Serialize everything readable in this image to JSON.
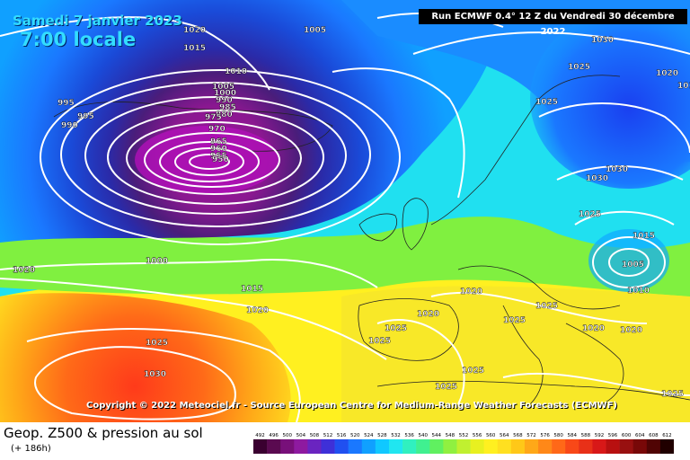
{
  "map": {
    "date": "Samedi 7 janvier 2023",
    "time": "7:00 locale",
    "run_info": "Run ECMWF 0.4° 12 Z du Vendredi 30 décembre 2022",
    "copyright": "Copyright © 2022 Meteociel.fr - Source European Centre for Medium-Range Weather Forecasts (ECMWF)",
    "contour_labels": [
      "1020",
      "1005",
      "1015",
      "1010",
      "1005",
      "1000",
      "990",
      "985",
      "980",
      "975",
      "970",
      "965",
      "960",
      "955",
      "950",
      "995",
      "995",
      "990",
      "1030",
      "1025",
      "1020",
      "1010",
      "1025",
      "1030",
      "1030",
      "1025",
      "1015",
      "1005",
      "1010",
      "1020",
      "1000",
      "1015",
      "1020",
      "1020",
      "1025",
      "1020",
      "1025",
      "1025",
      "1025",
      "1020",
      "1020",
      "1025",
      "1025",
      "1025",
      "1030",
      "1020",
      "1025"
    ]
  },
  "legend": {
    "title": "Geop. Z500 & pression au sol",
    "subtitle": "(+ 186h)",
    "scale_values": [
      "492",
      "496",
      "500",
      "504",
      "508",
      "512",
      "516",
      "520",
      "524",
      "528",
      "532",
      "536",
      "540",
      "544",
      "548",
      "552",
      "556",
      "560",
      "564",
      "568",
      "572",
      "576",
      "580",
      "584",
      "588",
      "592",
      "596",
      "600",
      "604",
      "608",
      "612"
    ],
    "scale_colors": [
      "#3a0030",
      "#5a0a50",
      "#78107a",
      "#8e1aa0",
      "#6a24c0",
      "#3e30d8",
      "#2050f0",
      "#1a78ff",
      "#10a0ff",
      "#10c8ff",
      "#20e6f0",
      "#30f0c0",
      "#40f090",
      "#60f060",
      "#90f040",
      "#c0f030",
      "#e8f020",
      "#fff020",
      "#ffe020",
      "#ffc818",
      "#ffa818",
      "#ff8818",
      "#ff6818",
      "#f84818",
      "#e83018",
      "#d81818",
      "#b81010",
      "#981010",
      "#780808",
      "#500404",
      "#200000"
    ]
  }
}
